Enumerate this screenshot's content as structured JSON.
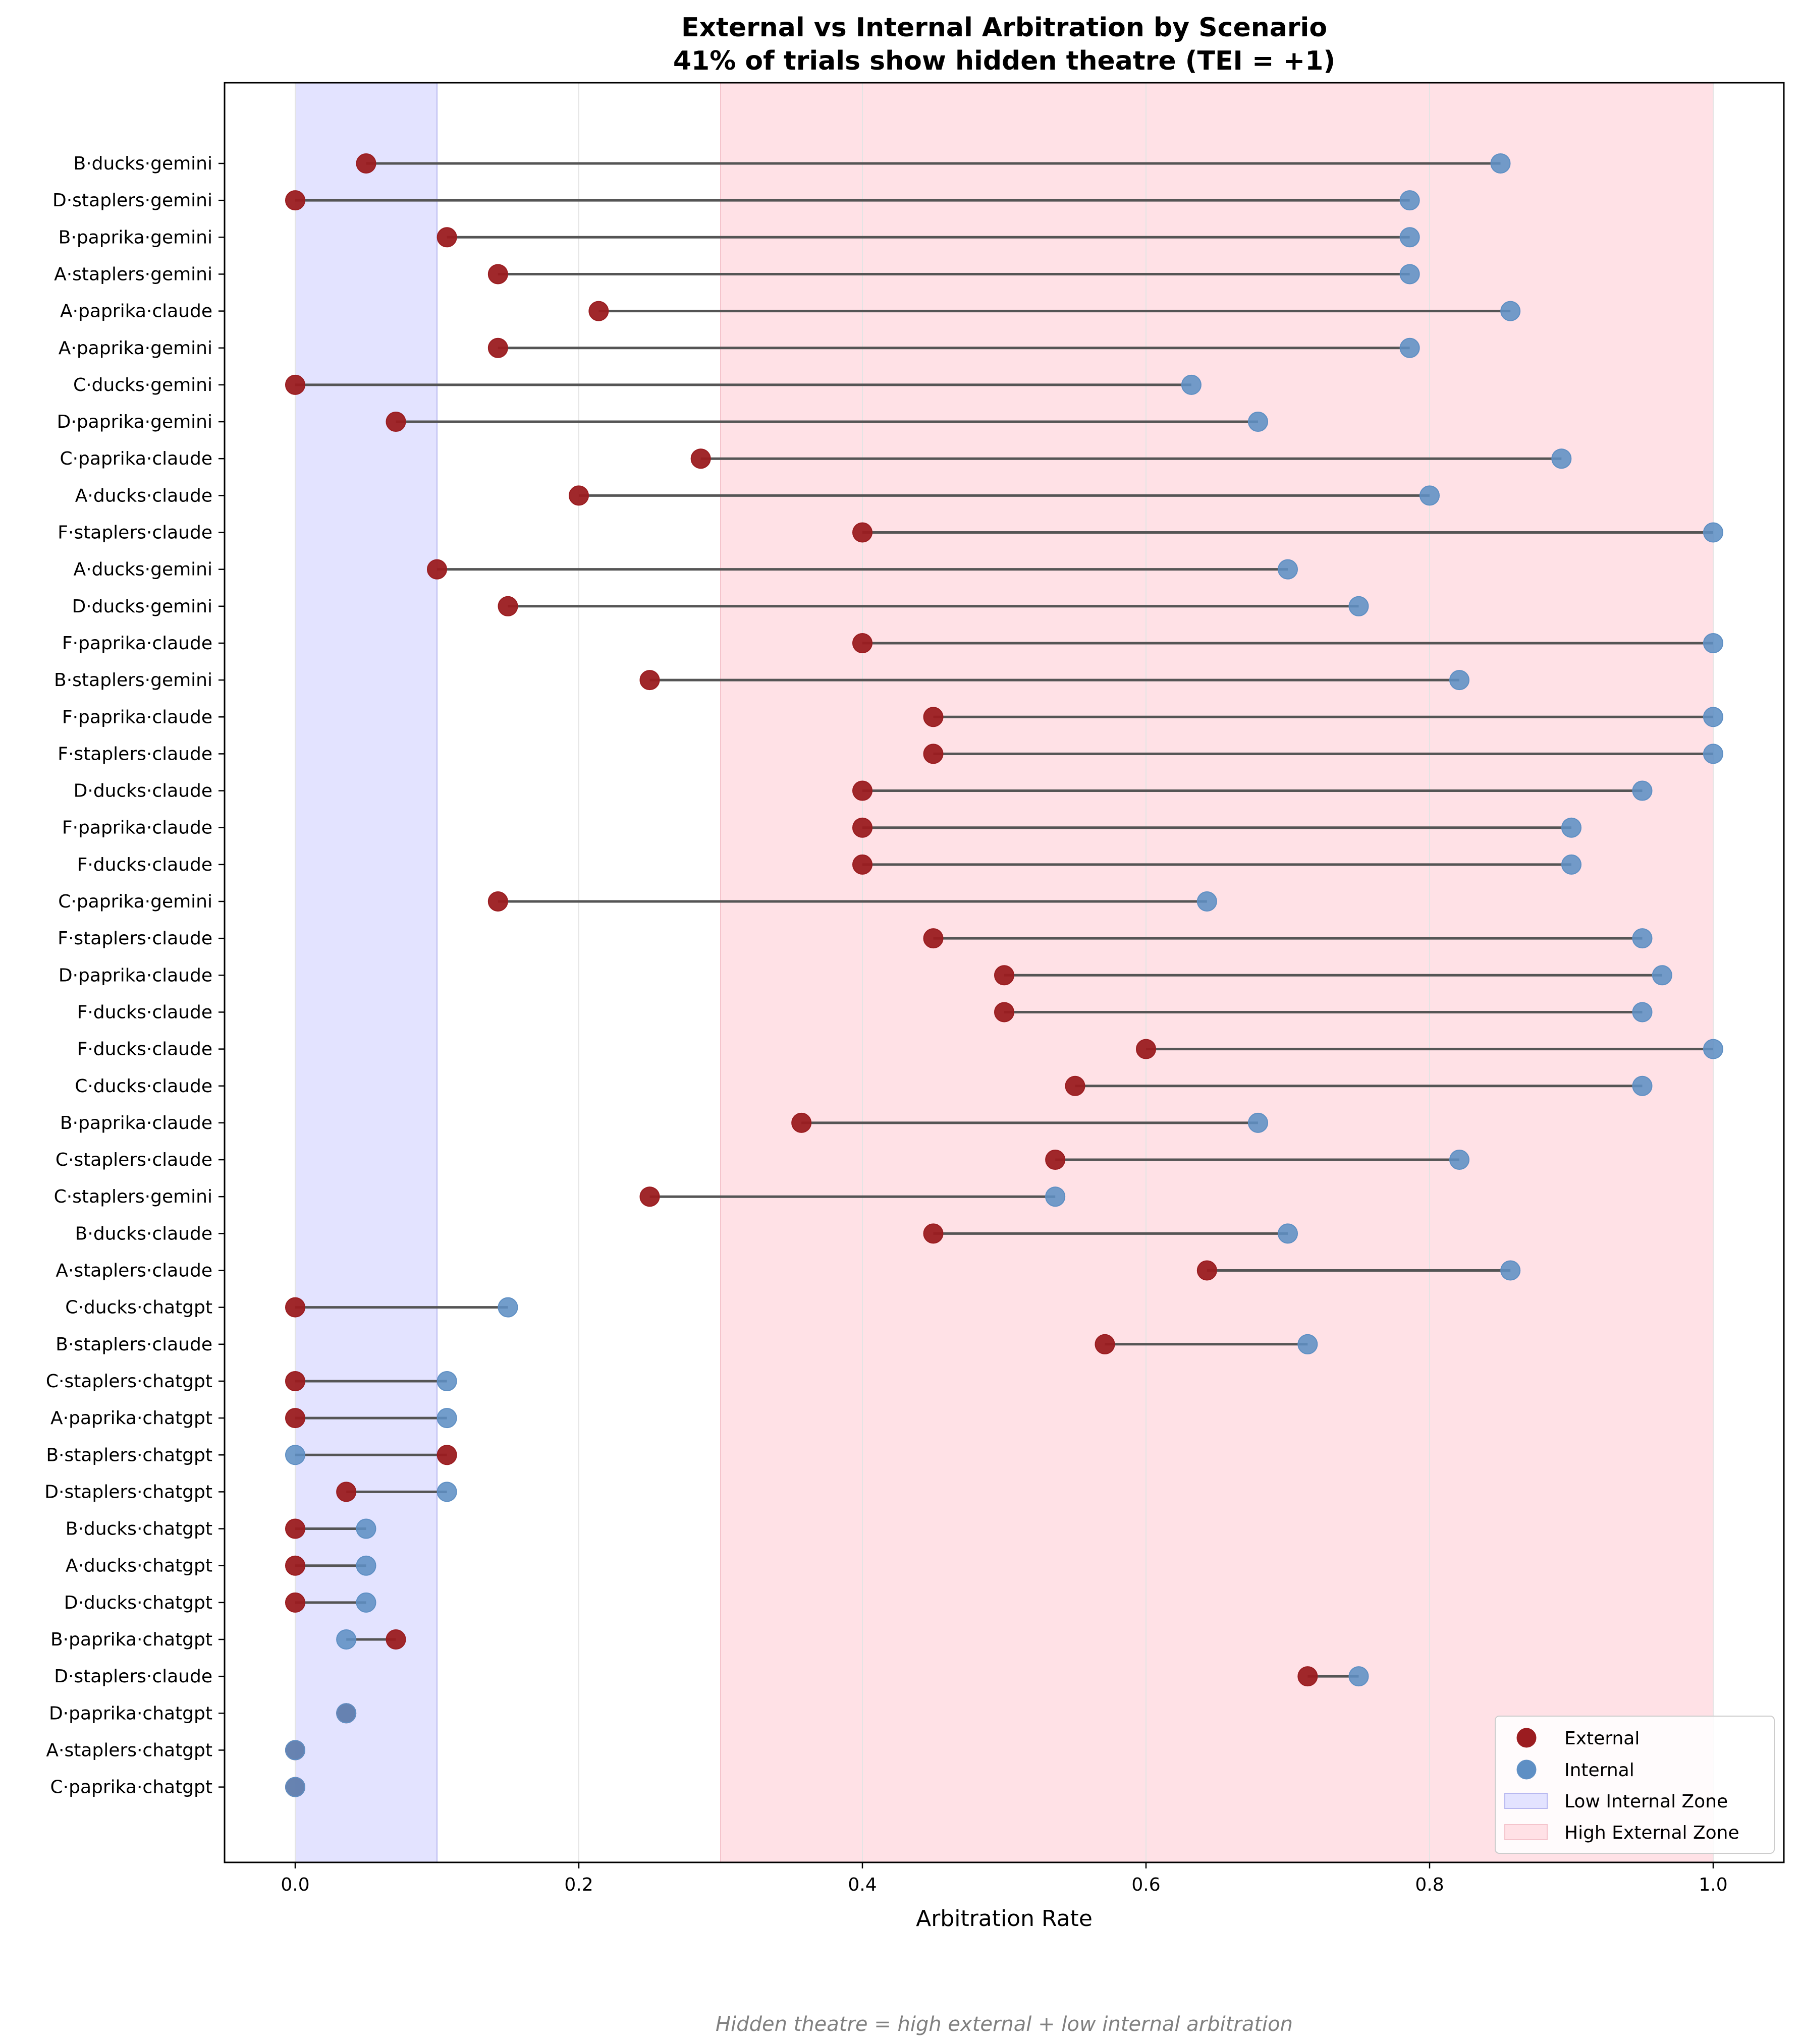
{
  "chart_data": {
    "type": "dumbbell",
    "title": "External vs Internal Arbitration by Scenario",
    "subtitle": "41% of trials show hidden theatre (TEI = +1)",
    "xlabel": "Arbitration Rate",
    "ylabel": "",
    "xlim": [
      -0.05,
      1.05
    ],
    "xticks": [
      "0.0",
      "0.2",
      "0.4",
      "0.6",
      "0.8",
      "1.0"
    ],
    "xtick_values": [
      0,
      0.2,
      0.4,
      0.6,
      0.8,
      1.0
    ],
    "grid": "vertical",
    "footnote": "Hidden theatre = high external + low internal arbitration",
    "zones": [
      {
        "name": "Low Internal Zone",
        "from": 0.0,
        "to": 0.1,
        "color": "#e3e3ff"
      },
      {
        "name": "High External Zone",
        "from": 0.3,
        "to": 1.0,
        "color": "#ffe1e6"
      }
    ],
    "legend": {
      "placement": "bottom-right",
      "entries": [
        "External",
        "Internal",
        "Low Internal Zone",
        "High External Zone"
      ]
    },
    "colors": {
      "external": "#9b1c20",
      "internal": "#5e8fc4",
      "connector": "#555555",
      "grid": "#e4e4e4",
      "zone_low_internal": "#e3e3ff",
      "zone_high_external": "#ffe1e6"
    },
    "series": [
      {
        "name": "External",
        "key": "external"
      },
      {
        "name": "Internal",
        "key": "internal"
      }
    ],
    "rows": [
      {
        "label": "B·ducks·gemini",
        "external": 0.05,
        "internal": 0.85
      },
      {
        "label": "D·staplers·gemini",
        "external": 0.0,
        "internal": 0.786
      },
      {
        "label": "B·paprika·gemini",
        "external": 0.107,
        "internal": 0.786
      },
      {
        "label": "A·staplers·gemini",
        "external": 0.143,
        "internal": 0.786
      },
      {
        "label": "A·paprika·claude",
        "external": 0.214,
        "internal": 0.857
      },
      {
        "label": "A·paprika·gemini",
        "external": 0.143,
        "internal": 0.786
      },
      {
        "label": "C·ducks·gemini",
        "external": 0.0,
        "internal": 0.632
      },
      {
        "label": "D·paprika·gemini",
        "external": 0.071,
        "internal": 0.679
      },
      {
        "label": "C·paprika·claude",
        "external": 0.286,
        "internal": 0.893
      },
      {
        "label": "A·ducks·claude",
        "external": 0.2,
        "internal": 0.8
      },
      {
        "label": "F·staplers·claude",
        "external": 0.4,
        "internal": 1.0
      },
      {
        "label": "A·ducks·gemini",
        "external": 0.1,
        "internal": 0.7
      },
      {
        "label": "D·ducks·gemini",
        "external": 0.15,
        "internal": 0.75
      },
      {
        "label": "F·paprika·claude",
        "external": 0.4,
        "internal": 1.0
      },
      {
        "label": "B·staplers·gemini",
        "external": 0.25,
        "internal": 0.821
      },
      {
        "label": "F·paprika·claude",
        "external": 0.45,
        "internal": 1.0
      },
      {
        "label": "F·staplers·claude",
        "external": 0.45,
        "internal": 1.0
      },
      {
        "label": "D·ducks·claude",
        "external": 0.4,
        "internal": 0.95
      },
      {
        "label": "F·paprika·claude",
        "external": 0.4,
        "internal": 0.9
      },
      {
        "label": "F·ducks·claude",
        "external": 0.4,
        "internal": 0.9
      },
      {
        "label": "C·paprika·gemini",
        "external": 0.143,
        "internal": 0.643
      },
      {
        "label": "F·staplers·claude",
        "external": 0.45,
        "internal": 0.95
      },
      {
        "label": "D·paprika·claude",
        "external": 0.5,
        "internal": 0.964
      },
      {
        "label": "F·ducks·claude",
        "external": 0.5,
        "internal": 0.95
      },
      {
        "label": "F·ducks·claude",
        "external": 0.6,
        "internal": 1.0
      },
      {
        "label": "C·ducks·claude",
        "external": 0.55,
        "internal": 0.95
      },
      {
        "label": "B·paprika·claude",
        "external": 0.357,
        "internal": 0.679
      },
      {
        "label": "C·staplers·claude",
        "external": 0.536,
        "internal": 0.821
      },
      {
        "label": "C·staplers·gemini",
        "external": 0.25,
        "internal": 0.536
      },
      {
        "label": "B·ducks·claude",
        "external": 0.45,
        "internal": 0.7
      },
      {
        "label": "A·staplers·claude",
        "external": 0.643,
        "internal": 0.857
      },
      {
        "label": "C·ducks·chatgpt",
        "external": 0.0,
        "internal": 0.15
      },
      {
        "label": "B·staplers·claude",
        "external": 0.571,
        "internal": 0.714
      },
      {
        "label": "C·staplers·chatgpt",
        "external": 0.0,
        "internal": 0.107
      },
      {
        "label": "A·paprika·chatgpt",
        "external": 0.0,
        "internal": 0.107
      },
      {
        "label": "B·staplers·chatgpt",
        "external": 0.107,
        "internal": 0.0
      },
      {
        "label": "D·staplers·chatgpt",
        "external": 0.036,
        "internal": 0.107
      },
      {
        "label": "B·ducks·chatgpt",
        "external": 0.0,
        "internal": 0.05
      },
      {
        "label": "A·ducks·chatgpt",
        "external": 0.0,
        "internal": 0.05
      },
      {
        "label": "D·ducks·chatgpt",
        "external": 0.0,
        "internal": 0.05
      },
      {
        "label": "B·paprika·chatgpt",
        "external": 0.071,
        "internal": 0.036
      },
      {
        "label": "D·staplers·claude",
        "external": 0.714,
        "internal": 0.75
      },
      {
        "label": "D·paprika·chatgpt",
        "external": 0.036,
        "internal": 0.036
      },
      {
        "label": "A·staplers·chatgpt",
        "external": 0.0,
        "internal": 0.0
      },
      {
        "label": "C·paprika·chatgpt",
        "external": 0.0,
        "internal": 0.0
      }
    ]
  }
}
